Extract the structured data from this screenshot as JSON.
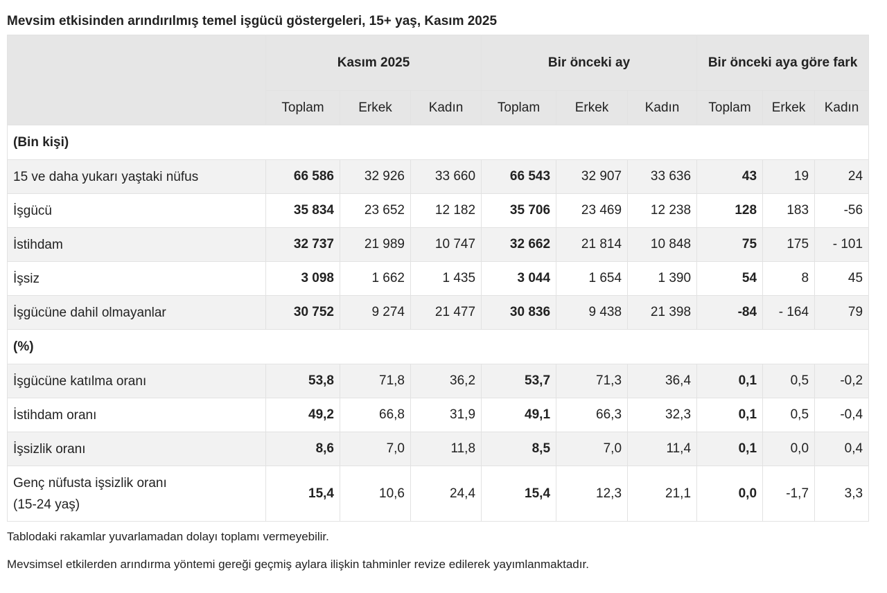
{
  "title": "Mevsim etkisinden arındırılmış temel işgücü göstergeleri, 15+ yaş, Kasım 2025",
  "table": {
    "header_groups": [
      "Kasım 2025",
      "Bir önceki ay",
      "Bir önceki aya göre fark"
    ],
    "subheaders": [
      "Toplam",
      "Erkek",
      "Kadın",
      "Toplam",
      "Erkek",
      "Kadın",
      "Toplam",
      "Erkek",
      "Kadın"
    ],
    "sections": [
      {
        "label": "(Bin kişi)",
        "rows": [
          {
            "label": "15 ve daha yukarı yaştaki nüfus",
            "values": [
              "66 586",
              "32 926",
              "33 660",
              "66 543",
              "32 907",
              "33 636",
              "43",
              "19",
              "24"
            ]
          },
          {
            "label": "İşgücü",
            "values": [
              "35 834",
              "23 652",
              "12 182",
              "35 706",
              "23 469",
              "12 238",
              "128",
              "183",
              "-56"
            ]
          },
          {
            "label": "İstihdam",
            "values": [
              "32 737",
              "21 989",
              "10 747",
              "32 662",
              "21 814",
              "10 848",
              "75",
              "175",
              "- 101"
            ]
          },
          {
            "label": "İşsiz",
            "values": [
              "3 098",
              "1 662",
              "1 435",
              "3 044",
              "1 654",
              "1 390",
              "54",
              "8",
              "45"
            ]
          },
          {
            "label": "İşgücüne dahil olmayanlar",
            "values": [
              "30 752",
              "9 274",
              "21 477",
              "30 836",
              "9 438",
              "21 398",
              "-84",
              "- 164",
              "79"
            ]
          }
        ]
      },
      {
        "label": "(%)",
        "rows": [
          {
            "label": "İşgücüne katılma oranı",
            "values": [
              "53,8",
              "71,8",
              "36,2",
              "53,7",
              "71,3",
              "36,4",
              "0,1",
              "0,5",
              "-0,2"
            ]
          },
          {
            "label": "İstihdam oranı",
            "values": [
              "49,2",
              "66,8",
              "31,9",
              "49,1",
              "66,3",
              "32,3",
              "0,1",
              "0,5",
              "-0,4"
            ]
          },
          {
            "label": "İşsizlik oranı",
            "values": [
              "8,6",
              "7,0",
              "11,8",
              "8,5",
              "7,0",
              "11,4",
              "0,1",
              "0,0",
              "0,4"
            ]
          },
          {
            "label": "Genç nüfusta işsizlik oranı\n(15-24 yaş)",
            "values": [
              "15,4",
              "10,6",
              "24,4",
              "15,4",
              "12,3",
              "21,1",
              "0,0",
              "-1,7",
              "3,3"
            ]
          }
        ]
      }
    ]
  },
  "notes": [
    "Tablodaki rakamlar yuvarlamadan dolayı toplamı vermeyebilir.",
    "Mevsimsel etkilerden arındırma yöntemi gereği geçmiş aylara ilişkin tahminler revize edilerek yayımlanmaktadır."
  ]
}
